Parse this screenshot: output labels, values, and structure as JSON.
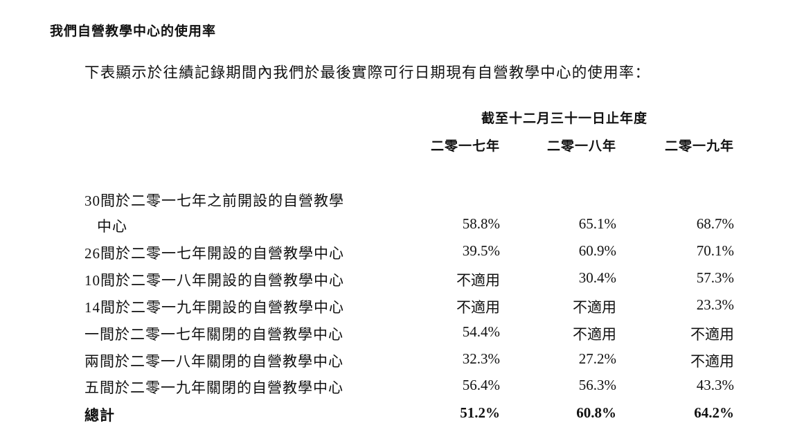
{
  "title": "我們自營教學中心的使用率",
  "intro": "下表顯示於往績記錄期間內我們於最後實際可行日期現有自營教學中心的使用率：",
  "table": {
    "period_header": "截至十二月三十一日止年度",
    "years": [
      "二零一七年",
      "二零一八年",
      "二零一九年"
    ],
    "rows": [
      {
        "label": "30間於二零一七年之前開設的自營教學",
        "label_cont": "中心",
        "values": [
          "58.8%",
          "65.1%",
          "68.7%"
        ]
      },
      {
        "label": "26間於二零一七年開設的自營教學中心",
        "values": [
          "39.5%",
          "60.9%",
          "70.1%"
        ]
      },
      {
        "label": "10間於二零一八年開設的自營教學中心",
        "values": [
          "不適用",
          "30.4%",
          "57.3%"
        ]
      },
      {
        "label": "14間於二零一九年開設的自營教學中心",
        "values": [
          "不適用",
          "不適用",
          "23.3%"
        ]
      },
      {
        "label": "一間於二零一七年關閉的自營教學中心",
        "values": [
          "54.4%",
          "不適用",
          "不適用"
        ]
      },
      {
        "label": "兩間於二零一八年關閉的自營教學中心",
        "values": [
          "32.3%",
          "27.2%",
          "不適用"
        ]
      },
      {
        "label": "五間於二零一九年關閉的自營教學中心",
        "values": [
          "56.4%",
          "56.3%",
          "43.3%"
        ]
      }
    ],
    "total": {
      "label": "總計",
      "values": [
        "51.2%",
        "60.8%",
        "64.2%"
      ]
    }
  }
}
